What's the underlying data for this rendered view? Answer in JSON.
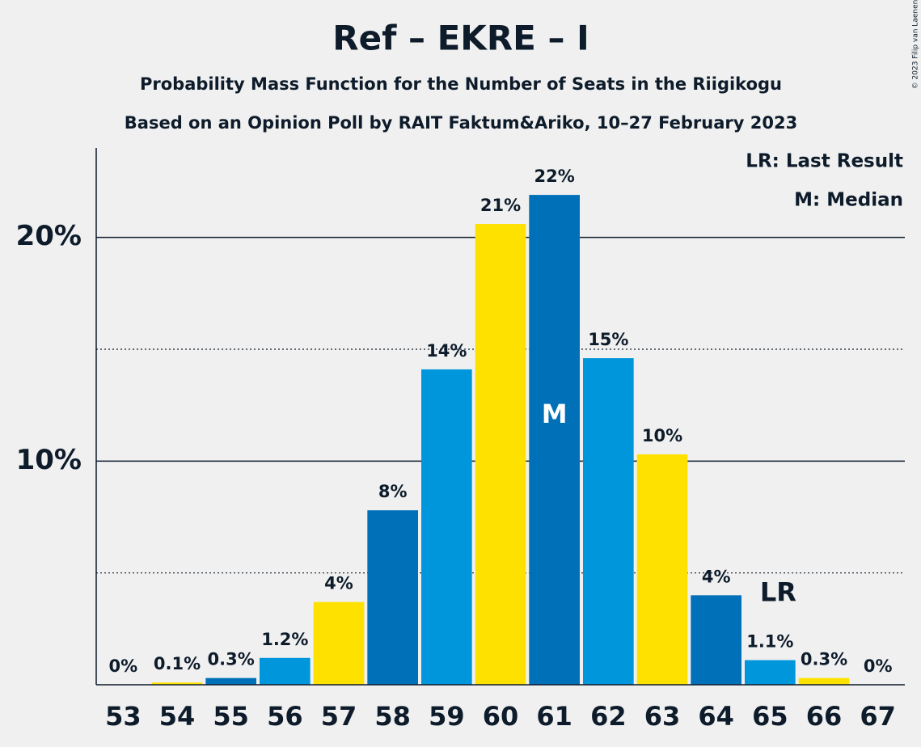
{
  "chart_data": {
    "type": "bar",
    "title": "Ref – EKRE – I",
    "subtitle": "Probability Mass Function for the Number of Seats in the Riigikogu",
    "subtitle2": "Based on an Opinion Poll by RAIT Faktum&Ariko, 10–27 February 2023",
    "copyright": "© 2023 Filip van Laenen",
    "legend": [
      "LR: Last Result",
      "M: Median"
    ],
    "categories": [
      "53",
      "54",
      "55",
      "56",
      "57",
      "58",
      "59",
      "60",
      "61",
      "62",
      "63",
      "64",
      "65",
      "66",
      "67"
    ],
    "values": [
      0,
      0.1,
      0.3,
      1.2,
      3.7,
      7.8,
      14.1,
      20.6,
      21.9,
      14.6,
      10.3,
      4.0,
      1.1,
      0.3,
      0
    ],
    "value_labels": [
      "0%",
      "0.1%",
      "0.3%",
      "1.2%",
      "4%",
      "8%",
      "14%",
      "21%",
      "22%",
      "15%",
      "10%",
      "4%",
      "1.1%",
      "0.3%",
      "0%"
    ],
    "colors": [
      "#0096db",
      "#ffe100",
      "#0070b8",
      "#0096db",
      "#ffe100",
      "#0070b8",
      "#0096db",
      "#ffe100",
      "#0070b8",
      "#0096db",
      "#ffe100",
      "#0070b8",
      "#0096db",
      "#ffe100",
      "#0070b8"
    ],
    "annotations": [
      {
        "text": "M",
        "category": "61"
      },
      {
        "text": "LR",
        "category": "65"
      }
    ],
    "ylim": [
      0,
      24
    ],
    "yticks": [
      {
        "value": 10,
        "label": "10%"
      },
      {
        "value": 20,
        "label": "20%"
      }
    ],
    "minor_yticks": [
      5,
      15
    ],
    "grid": true
  }
}
